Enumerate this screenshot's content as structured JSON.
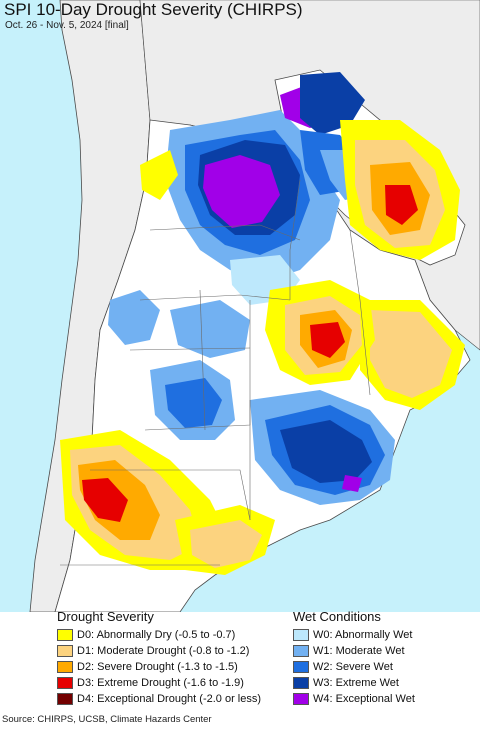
{
  "header": {
    "title": "SPI 10-Day Drought Severity (CHIRPS)",
    "subtitle": "Oct. 26 - Nov. 5, 2024 [final]"
  },
  "colors": {
    "ocean": "#c6f1fb",
    "land_neutral": "#ffffff",
    "outside_land": "#ededed",
    "border": "#4a4a4a"
  },
  "legend": {
    "drought": {
      "title": "Drought Severity",
      "items": [
        {
          "label": "D0: Abnormally Dry (-0.5 to -0.7)",
          "color": "#ffff00"
        },
        {
          "label": "D1: Moderate Drought (-0.8 to -1.2)",
          "color": "#fcd37f"
        },
        {
          "label": "D2: Severe Drought (-1.3 to -1.5)",
          "color": "#ffaa00"
        },
        {
          "label": "D3: Extreme Drought (-1.6 to -1.9)",
          "color": "#e60000"
        },
        {
          "label": "D4: Exceptional Drought (-2.0 or less)",
          "color": "#730000"
        }
      ]
    },
    "wet": {
      "title": "Wet Conditions",
      "items": [
        {
          "label": "W0: Abnormally Wet",
          "color": "#bde8fc"
        },
        {
          "label": "W1: Moderate Wet",
          "color": "#72b1f2"
        },
        {
          "label": "W2: Severe Wet",
          "color": "#1f6fe0"
        },
        {
          "label": "W3: Extreme Wet",
          "color": "#0a3fa6"
        },
        {
          "label": "W4: Exceptional Wet",
          "color": "#a100e8"
        }
      ]
    }
  },
  "footer": {
    "source": "Source: CHIRPS, UCSB, Climate Hazards Center"
  }
}
